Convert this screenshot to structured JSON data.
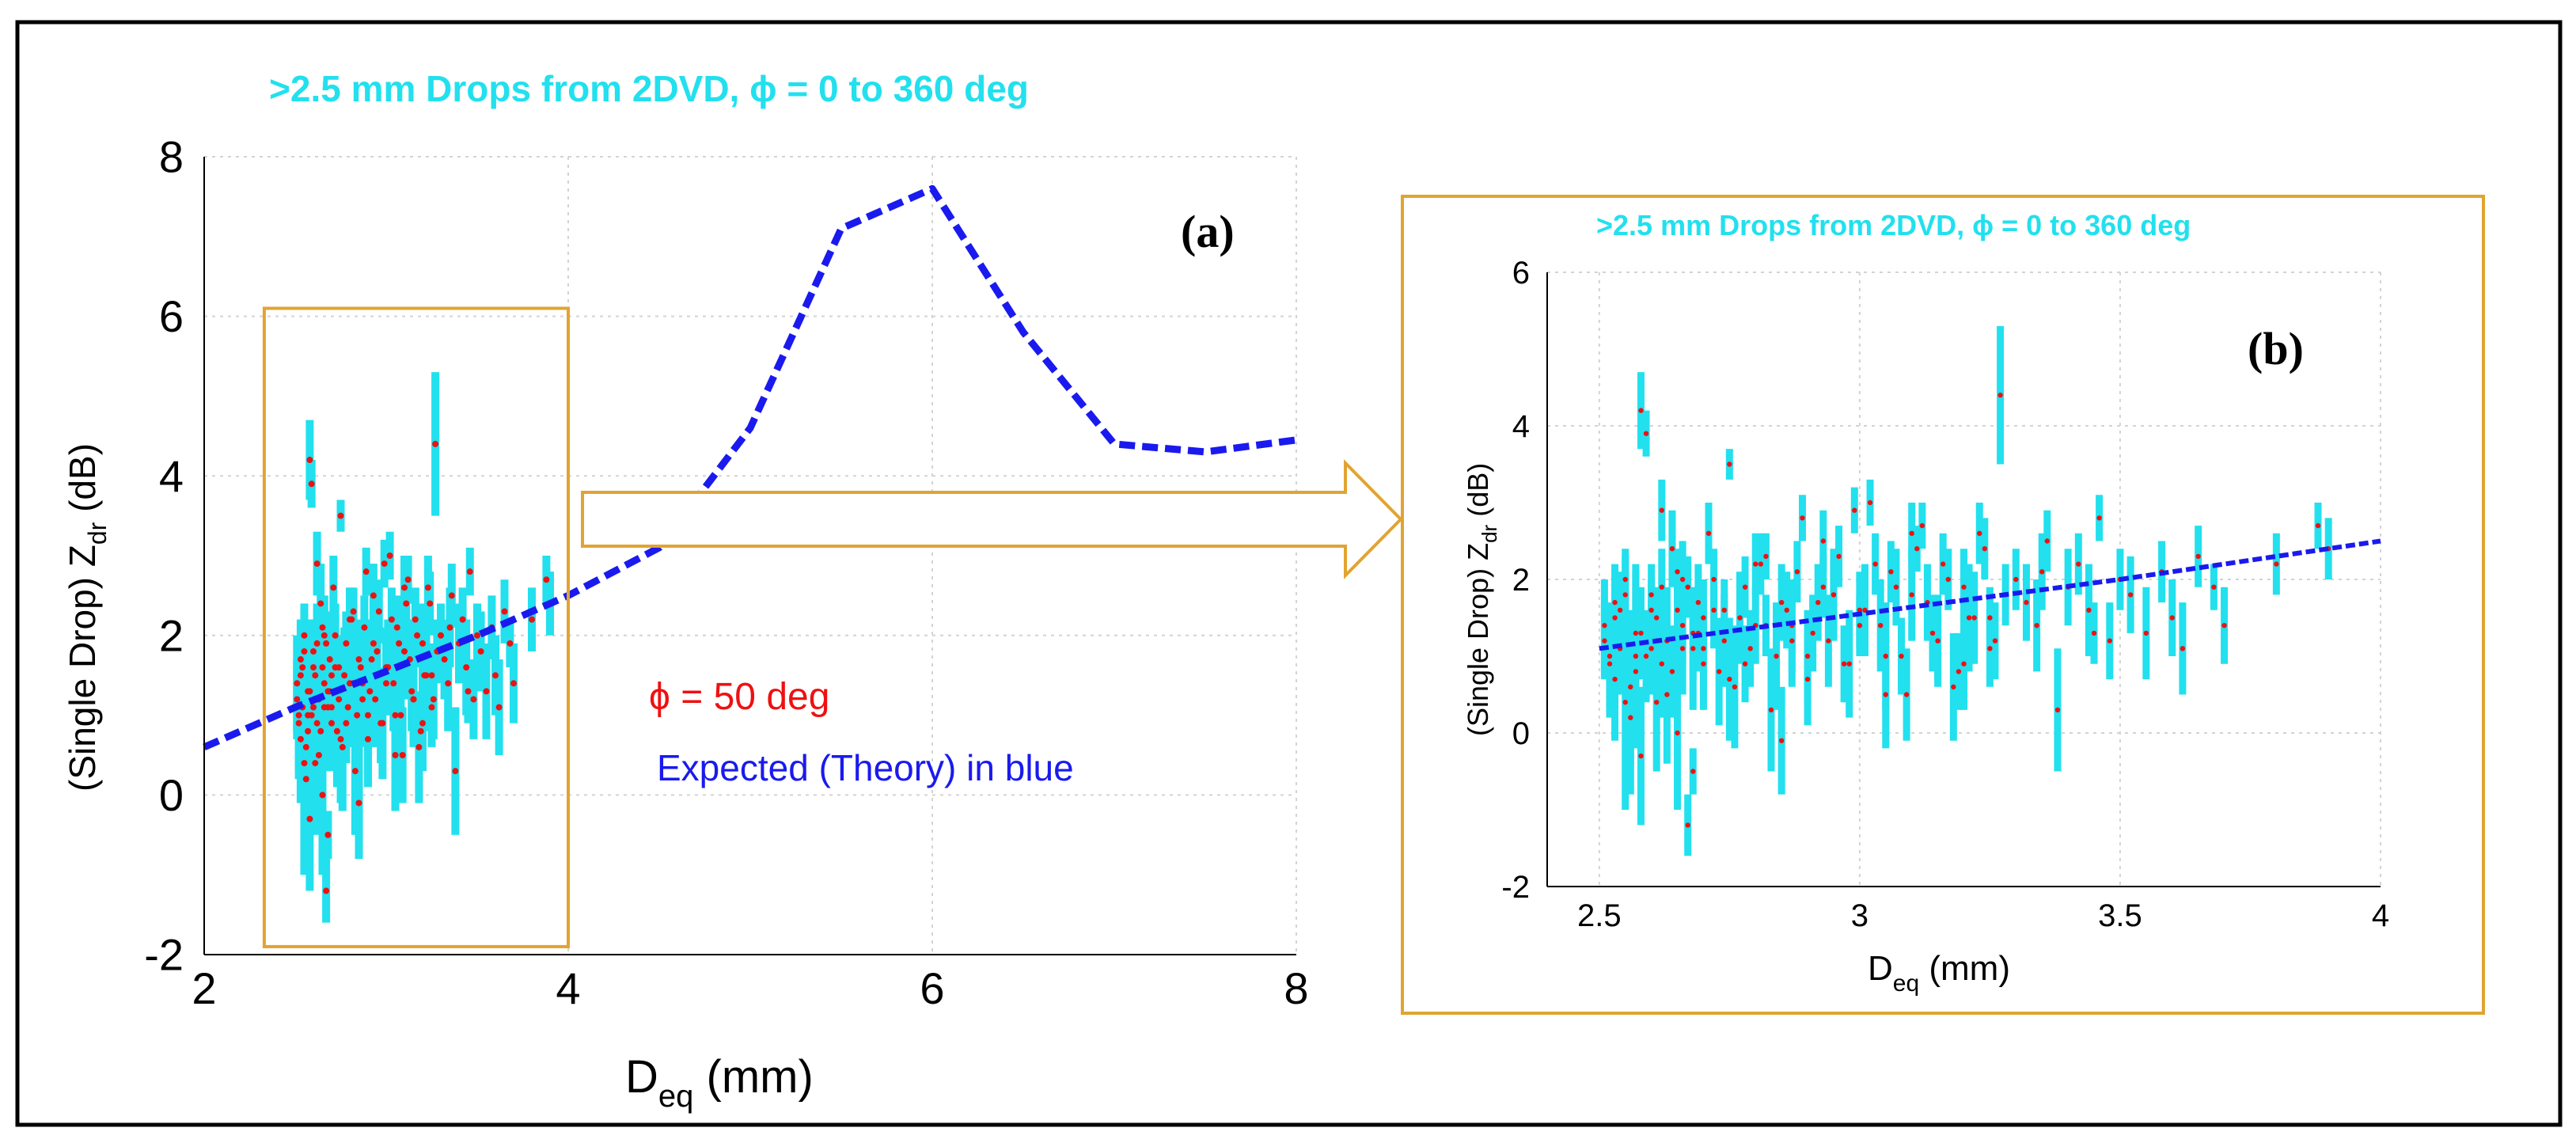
{
  "figure": {
    "frame_color": "#000000"
  },
  "colors": {
    "drops": "#22e0ee",
    "points": "#ee1111",
    "theory": "#1a1aee",
    "highlight": "#e1a431"
  },
  "chart_data": [
    {
      "id": "a",
      "type": "scatter",
      "panel_label": "(a)",
      "title": ">2.5 mm Drops from 2DVD, ϕ = 0 to 360 deg",
      "xlabel_main": "D",
      "xlabel_sub": "eq",
      "xlabel_unit": " (mm)",
      "ylabel_prefix": "(Single Drop)  Z",
      "ylabel_sub": "dr",
      "ylabel_unit": " (dB)",
      "xlim": [
        2,
        8
      ],
      "ylim": [
        -2,
        8
      ],
      "xticks": [
        2,
        4,
        6,
        8
      ],
      "yticks": [
        -2,
        0,
        2,
        4,
        6,
        8
      ],
      "grid": true,
      "annotation_red": "ϕ = 50 deg",
      "annotation_blue": "Expected (Theory) in blue",
      "zoom_box": {
        "x": [
          2.33,
          4.0
        ],
        "y": [
          -1.9,
          6.1
        ]
      },
      "series": [
        {
          "name": "Expected (Theory)",
          "style": "dashed",
          "x": [
            2.0,
            2.5,
            3.0,
            3.5,
            4.0,
            4.5,
            5.0,
            5.5,
            6.0,
            6.5,
            7.0,
            7.5,
            8.0
          ],
          "y": [
            0.6,
            1.1,
            1.55,
            2.0,
            2.5,
            3.1,
            4.6,
            7.1,
            7.6,
            5.8,
            4.4,
            4.3,
            4.45
          ]
        }
      ]
    },
    {
      "id": "b",
      "type": "scatter",
      "panel_label": "(b)",
      "title": ">2.5 mm Drops from 2DVD, ϕ = 0 to 360 deg",
      "xlabel_main": "D",
      "xlabel_sub": "eq",
      "xlabel_unit": " (mm)",
      "ylabel_prefix": "(Single Drop)  Z",
      "ylabel_sub": "dr",
      "ylabel_unit": " (dB)",
      "xlim": [
        2.4,
        4
      ],
      "ylim": [
        -2,
        6
      ],
      "xticks": [
        2.5,
        3,
        3.5,
        4
      ],
      "yticks": [
        -2,
        0,
        2,
        4,
        6
      ],
      "grid": true,
      "series": [
        {
          "name": "Expected (Theory)",
          "style": "dashed",
          "x": [
            2.5,
            3.0,
            3.5,
            4.0
          ],
          "y": [
            1.1,
            1.55,
            2.0,
            2.5
          ]
        }
      ]
    }
  ],
  "drops": {
    "description_count": 150,
    "x": [
      2.51,
      2.52,
      2.53,
      2.54,
      2.55,
      2.56,
      2.57,
      2.58,
      2.59,
      2.6,
      2.61,
      2.62,
      2.63,
      2.64,
      2.65,
      2.66,
      2.67,
      2.68,
      2.69,
      2.7,
      2.51,
      2.53,
      2.55,
      2.57,
      2.59,
      2.61,
      2.63,
      2.65,
      2.67,
      2.69,
      2.71,
      2.73,
      2.75,
      2.77,
      2.79,
      2.81,
      2.83,
      2.85,
      2.87,
      2.89,
      2.52,
      2.54,
      2.56,
      2.58,
      2.6,
      2.62,
      2.64,
      2.66,
      2.68,
      2.7,
      2.72,
      2.74,
      2.76,
      2.78,
      2.8,
      2.82,
      2.84,
      2.86,
      2.88,
      2.9,
      2.91,
      2.93,
      2.95,
      2.97,
      2.99,
      3.01,
      3.03,
      3.05,
      3.07,
      3.09,
      3.11,
      3.13,
      3.15,
      3.17,
      3.19,
      3.21,
      3.23,
      3.25,
      3.27,
      3.28,
      2.92,
      2.94,
      2.96,
      2.98,
      3.0,
      3.02,
      3.04,
      3.06,
      3.08,
      3.1,
      3.12,
      3.14,
      3.16,
      3.18,
      3.2,
      3.22,
      3.24,
      3.26,
      3.3,
      3.32,
      3.34,
      3.36,
      3.38,
      3.4,
      3.42,
      3.44,
      3.46,
      3.48,
      3.5,
      3.52,
      3.55,
      3.58,
      3.6,
      3.62,
      3.65,
      3.68,
      3.7,
      3.8,
      3.88,
      3.9,
      2.55,
      2.58,
      2.6,
      2.62,
      2.65,
      2.68,
      2.72,
      2.75,
      2.8,
      2.85,
      2.9,
      2.95,
      3.0,
      3.05,
      3.1,
      3.15,
      3.2,
      3.25,
      3.35,
      3.45,
      2.53,
      2.57,
      2.61,
      2.66,
      2.7,
      2.74,
      2.78,
      2.82,
      2.87,
      2.93
    ],
    "y": [
      1.2,
      0.9,
      1.5,
      1.1,
      1.8,
      0.6,
      1.3,
      4.2,
      1.0,
      1.6,
      0.4,
      1.9,
      1.2,
      0.8,
      2.1,
      1.4,
      -1.2,
      1.1,
      1.7,
      0.9,
      1.4,
      0.7,
      2.0,
      1.0,
      3.9,
      1.2,
      0.5,
      1.6,
      1.9,
      1.3,
      2.6,
      0.8,
      3.5,
      1.5,
      1.1,
      2.2,
      0.3,
      1.7,
      1.4,
      2.8,
      1.0,
      1.6,
      0.2,
      1.3,
      1.8,
      0.9,
      2.4,
      1.1,
      -0.5,
      1.5,
      2.0,
      1.2,
      0.6,
      1.9,
      1.4,
      2.3,
      1.0,
      1.6,
      2.1,
      0.7,
      1.3,
      2.5,
      1.8,
      0.9,
      2.9,
      1.6,
      2.2,
      1.0,
      1.9,
      0.5,
      2.4,
      1.7,
      1.2,
      2.0,
      0.8,
      1.5,
      2.6,
      1.1,
      4.4,
      1.8,
      1.7,
      1.2,
      2.3,
      0.9,
      1.6,
      3.0,
      1.4,
      2.1,
      1.0,
      1.8,
      2.7,
      1.3,
      2.2,
      0.6,
      1.9,
      1.5,
      2.4,
      1.2,
      2.0,
      1.7,
      1.4,
      2.5,
      0.3,
      1.9,
      2.2,
      1.6,
      2.8,
      1.2,
      2.0,
      1.8,
      1.3,
      2.1,
      1.5,
      1.1,
      2.3,
      1.9,
      1.4,
      2.2,
      2.7,
      2.4,
      0.4,
      -0.3,
      1.1,
      2.9,
      0.0,
      1.3,
      1.6,
      0.7,
      2.2,
      -0.1,
      1.0,
      1.8,
      1.4,
      0.5,
      2.6,
      1.2,
      0.9,
      1.5,
      2.1,
      1.3,
      1.7,
      0.8,
      1.5,
      2.0,
      1.1,
      1.6,
      0.9,
      1.4,
      1.2,
      1.9
    ],
    "half_len": [
      0.5,
      0.7,
      0.4,
      0.6,
      0.5,
      1.0,
      0.8,
      0.5,
      0.6,
      0.4,
      0.9,
      0.5,
      0.7,
      0.6,
      0.3,
      0.5,
      0.4,
      0.8,
      0.5,
      0.6,
      0.6,
      0.8,
      0.4,
      1.2,
      0.3,
      0.5,
      0.9,
      0.6,
      0.4,
      0.5,
      0.4,
      0.7,
      0.2,
      0.6,
      0.5,
      0.4,
      0.8,
      0.5,
      0.6,
      0.3,
      0.7,
      0.5,
      1.0,
      0.6,
      0.4,
      0.7,
      0.5,
      0.6,
      0.3,
      0.5,
      0.4,
      0.6,
      0.8,
      0.4,
      0.5,
      0.3,
      0.7,
      0.5,
      0.4,
      0.6,
      0.5,
      0.4,
      0.6,
      0.5,
      0.3,
      0.6,
      0.4,
      0.7,
      0.5,
      0.6,
      0.3,
      0.5,
      0.6,
      0.4,
      0.5,
      0.7,
      0.4,
      0.5,
      0.9,
      0.4,
      0.5,
      0.6,
      0.4,
      0.7,
      0.5,
      0.3,
      0.6,
      0.4,
      0.5,
      0.6,
      0.3,
      0.5,
      0.4,
      0.7,
      0.5,
      0.6,
      0.4,
      0.5,
      0.4,
      0.5,
      0.6,
      0.4,
      0.8,
      0.5,
      0.4,
      0.6,
      0.3,
      0.5,
      0.4,
      0.5,
      0.6,
      0.4,
      0.5,
      0.6,
      0.4,
      0.3,
      0.5,
      0.4,
      0.3,
      0.4,
      1.4,
      0.9,
      0.6,
      0.4,
      1.0,
      0.6,
      0.5,
      0.8,
      0.4,
      0.7,
      0.6,
      0.5,
      0.4,
      0.7,
      0.4,
      0.5,
      0.6,
      0.4,
      0.5,
      0.4,
      0.5,
      0.7,
      0.4,
      0.5,
      0.6,
      0.4,
      0.5,
      0.4,
      0.6,
      0.4
    ]
  }
}
